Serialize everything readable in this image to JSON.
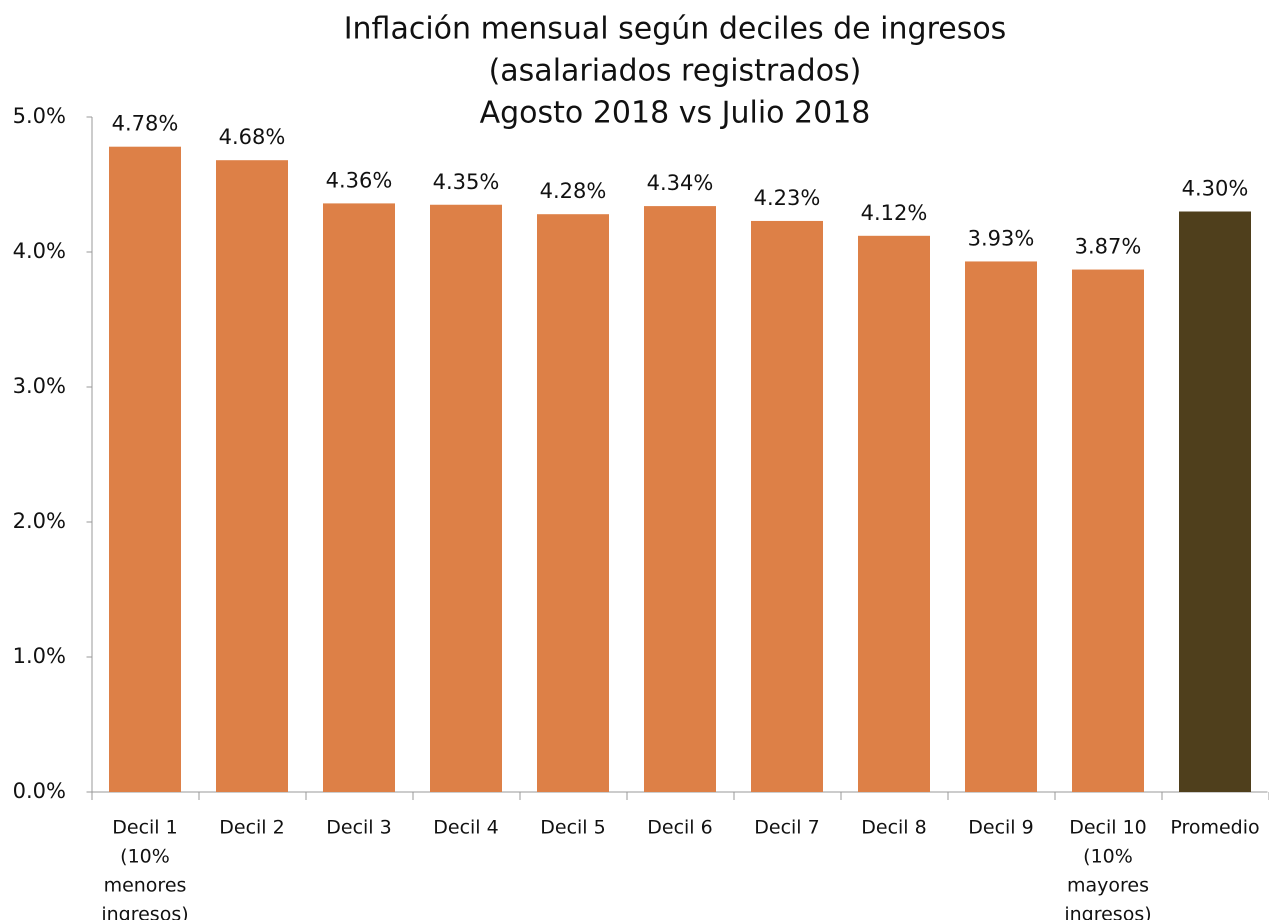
{
  "chart_data": {
    "type": "bar",
    "title": [
      "Inflación mensual según deciles de ingresos",
      "(asalariados registrados)",
      "Agosto 2018 vs Julio 2018"
    ],
    "categories": [
      [
        "Decil 1",
        "(10%",
        "menores",
        "ingresos)"
      ],
      [
        "Decil 2"
      ],
      [
        "Decil 3"
      ],
      [
        "Decil 4"
      ],
      [
        "Decil 5"
      ],
      [
        "Decil 6"
      ],
      [
        "Decil 7"
      ],
      [
        "Decil 8"
      ],
      [
        "Decil 9"
      ],
      [
        "Decil 10",
        "(10%",
        "mayores",
        "ingresos)"
      ],
      [
        "Promedio"
      ]
    ],
    "values": [
      4.78,
      4.68,
      4.36,
      4.35,
      4.28,
      4.34,
      4.23,
      4.12,
      3.93,
      3.87,
      4.3
    ],
    "value_labels": [
      "4.78%",
      "4.68%",
      "4.36%",
      "4.35%",
      "4.28%",
      "4.34%",
      "4.23%",
      "4.12%",
      "3.93%",
      "3.87%",
      "4.30%"
    ],
    "colors": [
      "#dd8047",
      "#dd8047",
      "#dd8047",
      "#dd8047",
      "#dd8047",
      "#dd8047",
      "#dd8047",
      "#dd8047",
      "#dd8047",
      "#dd8047",
      "#4f3f1c"
    ],
    "ylim": [
      0,
      5
    ],
    "yticks": [
      {
        "value": 0,
        "label": "0.0%"
      },
      {
        "value": 1,
        "label": "1.0%"
      },
      {
        "value": 2,
        "label": "2.0%"
      },
      {
        "value": 3,
        "label": "3.0%"
      },
      {
        "value": 4,
        "label": "4.0%"
      },
      {
        "value": 5,
        "label": "5.0%"
      }
    ],
    "grid": false
  }
}
